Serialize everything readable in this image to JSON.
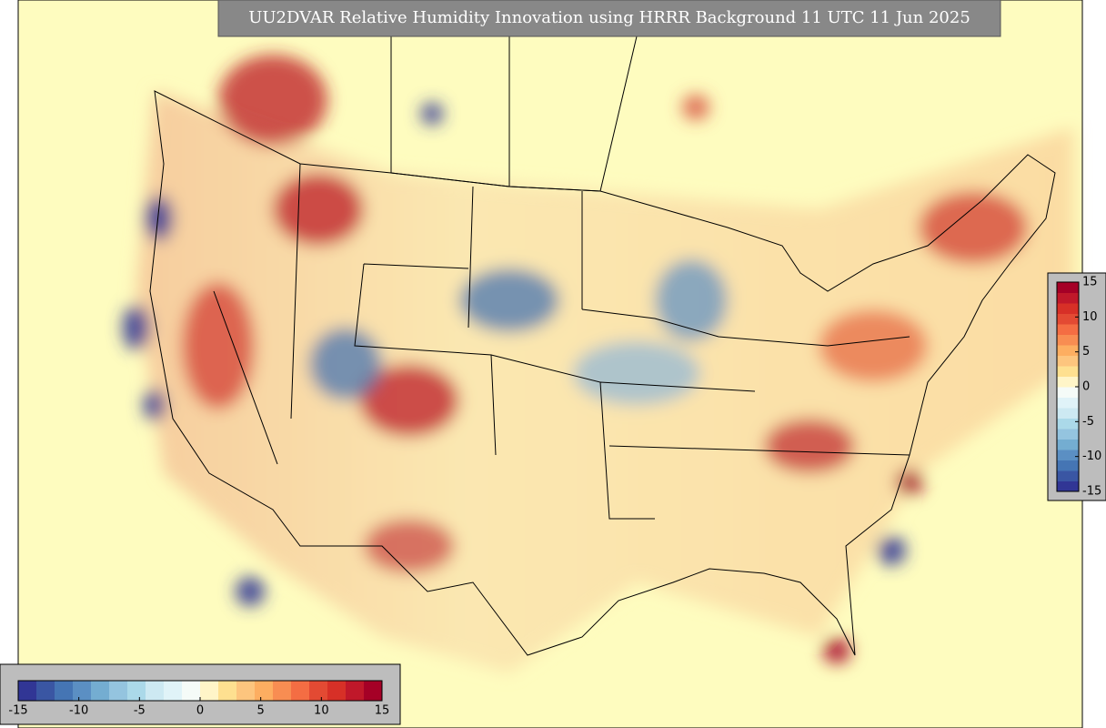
{
  "title": "UU2DVAR Relative Humidity Innovation using HRRR Background 11 UTC 11 Jun 2025",
  "colorbar_right": {
    "range": [
      -15,
      15
    ],
    "ticks": [
      -15,
      -10,
      -5,
      0,
      5,
      10,
      15
    ]
  },
  "colorbar_bottom": {
    "range": [
      -15,
      15
    ],
    "ticks": [
      -15,
      -10,
      -5,
      0,
      5,
      10,
      15
    ]
  }
}
